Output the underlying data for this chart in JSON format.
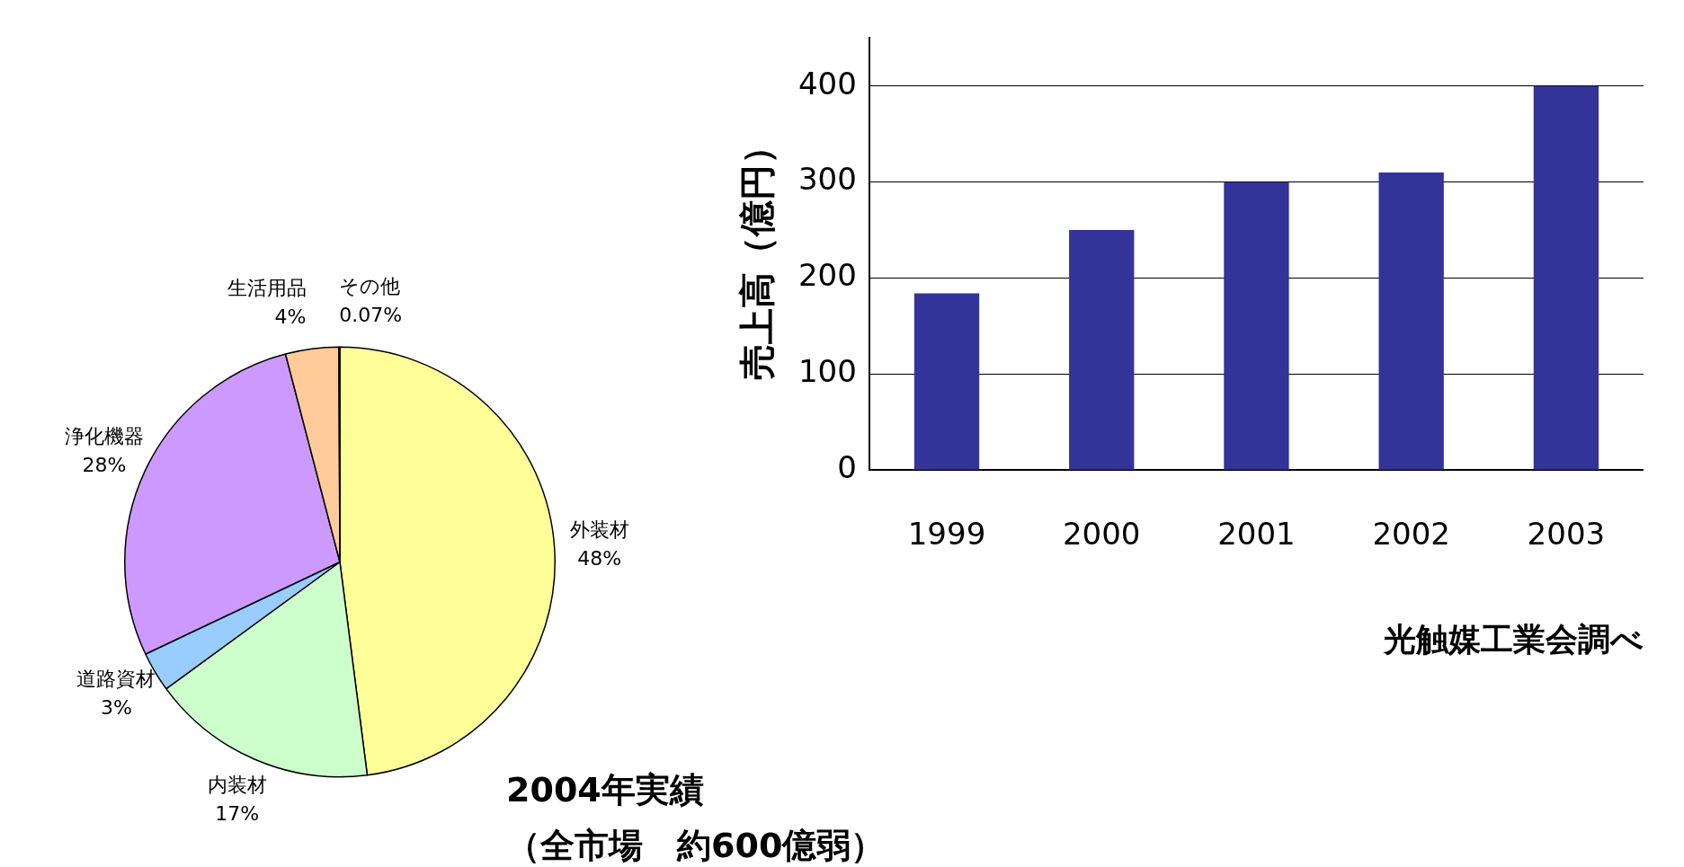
{
  "chart_data": [
    {
      "type": "pie",
      "categories": [
        "外装材",
        "内装材",
        "道路資材",
        "浄化機器",
        "生活用品",
        "その他"
      ],
      "values": [
        48,
        17,
        3,
        28,
        4,
        0.07
      ],
      "value_labels": [
        "48%",
        "17%",
        "3%",
        "28%",
        "4%",
        "0.07%"
      ],
      "colors": [
        "#ffff99",
        "#ccffcc",
        "#99ccff",
        "#cc99ff",
        "#ffcc99",
        "#ffffff"
      ],
      "legend": false,
      "annotations": [
        "2004年実績",
        "（全市場　約600億弱）"
      ]
    },
    {
      "type": "bar",
      "categories": [
        "1999",
        "2000",
        "2001",
        "2002",
        "2003"
      ],
      "values": [
        184,
        250,
        300,
        310,
        400
      ],
      "color": "#333399",
      "ylabel": "売上高（億円）",
      "ylim": [
        0,
        450
      ],
      "yticks": [
        0,
        100,
        200,
        300,
        400
      ],
      "grid": "y",
      "legend": false,
      "annotations": [
        "光触媒工業会調べ"
      ]
    }
  ]
}
